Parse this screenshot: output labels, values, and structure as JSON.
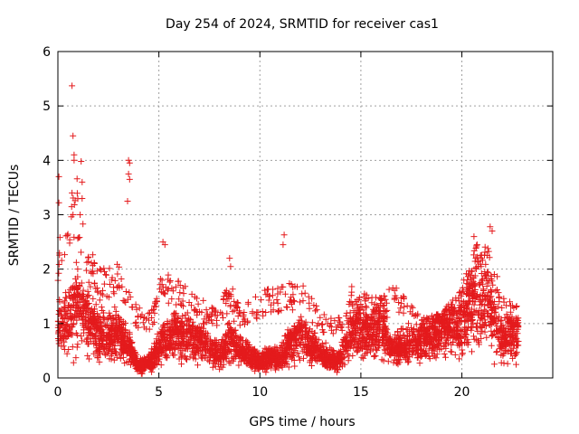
{
  "chart_data": {
    "type": "scatter",
    "title": "Day 254 of 2024, SRMTID for receiver cas1",
    "xlabel": "GPS time / hours",
    "ylabel": "SRMTID / TECUs",
    "xlim": [
      0,
      24.5
    ],
    "ylim": [
      0,
      6
    ],
    "xticks": [
      0,
      5,
      10,
      15,
      20
    ],
    "yticks": [
      0,
      1,
      2,
      3,
      4,
      5,
      6
    ],
    "grid": true,
    "marker": "plus",
    "series_color": "#e41a1c",
    "series": [
      {
        "name": "SRMTID",
        "generated_from_envelope": true,
        "points_per_hour": 190,
        "x_end": 22.8,
        "envelope": [
          {
            "x": 0.0,
            "median": 0.9,
            "max": 2.5
          },
          {
            "x": 0.5,
            "median": 1.0,
            "max": 3.2
          },
          {
            "x": 0.9,
            "median": 1.3,
            "max": 3.8
          },
          {
            "x": 1.4,
            "median": 1.2,
            "max": 2.6
          },
          {
            "x": 2.0,
            "median": 0.8,
            "max": 2.0
          },
          {
            "x": 3.0,
            "median": 0.8,
            "max": 2.1
          },
          {
            "x": 3.5,
            "median": 0.6,
            "max": 1.6
          },
          {
            "x": 4.0,
            "median": 0.2,
            "max": 1.3
          },
          {
            "x": 4.6,
            "median": 0.3,
            "max": 1.2
          },
          {
            "x": 5.2,
            "median": 0.7,
            "max": 2.0
          },
          {
            "x": 6.0,
            "median": 0.8,
            "max": 1.8
          },
          {
            "x": 7.0,
            "median": 0.7,
            "max": 1.5
          },
          {
            "x": 8.0,
            "median": 0.4,
            "max": 1.3
          },
          {
            "x": 8.5,
            "median": 0.7,
            "max": 1.8
          },
          {
            "x": 9.0,
            "median": 0.5,
            "max": 1.3
          },
          {
            "x": 10.0,
            "median": 0.3,
            "max": 1.6
          },
          {
            "x": 11.0,
            "median": 0.4,
            "max": 1.7
          },
          {
            "x": 12.0,
            "median": 0.8,
            "max": 1.8
          },
          {
            "x": 13.0,
            "median": 0.4,
            "max": 1.2
          },
          {
            "x": 14.0,
            "median": 0.3,
            "max": 1.1
          },
          {
            "x": 14.5,
            "median": 0.9,
            "max": 1.7
          },
          {
            "x": 15.5,
            "median": 0.8,
            "max": 1.5
          },
          {
            "x": 16.0,
            "median": 1.0,
            "max": 1.5
          },
          {
            "x": 16.5,
            "median": 0.5,
            "max": 1.8
          },
          {
            "x": 18.0,
            "median": 0.7,
            "max": 1.1
          },
          {
            "x": 19.0,
            "median": 0.9,
            "max": 1.2
          },
          {
            "x": 20.0,
            "median": 1.0,
            "max": 1.7
          },
          {
            "x": 20.7,
            "median": 1.5,
            "max": 2.5
          },
          {
            "x": 21.3,
            "median": 1.4,
            "max": 2.7
          },
          {
            "x": 22.0,
            "median": 0.7,
            "max": 1.5
          },
          {
            "x": 22.8,
            "median": 0.8,
            "max": 1.3
          }
        ],
        "outliers": [
          {
            "x": 0.7,
            "y": 5.37
          },
          {
            "x": 0.75,
            "y": 4.45
          },
          {
            "x": 0.8,
            "y": 4.1
          },
          {
            "x": 0.8,
            "y": 4.0
          },
          {
            "x": 1.15,
            "y": 3.98
          },
          {
            "x": 1.2,
            "y": 3.6
          },
          {
            "x": 0.05,
            "y": 3.7
          },
          {
            "x": 0.05,
            "y": 3.22
          },
          {
            "x": 0.7,
            "y": 3.4
          },
          {
            "x": 0.75,
            "y": 3.0
          },
          {
            "x": 1.2,
            "y": 3.3
          },
          {
            "x": 1.1,
            "y": 3.0
          },
          {
            "x": 3.5,
            "y": 4.0
          },
          {
            "x": 3.55,
            "y": 3.95
          },
          {
            "x": 3.5,
            "y": 3.75
          },
          {
            "x": 3.55,
            "y": 3.65
          },
          {
            "x": 3.45,
            "y": 3.25
          },
          {
            "x": 11.2,
            "y": 2.63
          },
          {
            "x": 11.15,
            "y": 2.45
          },
          {
            "x": 21.4,
            "y": 2.78
          },
          {
            "x": 21.5,
            "y": 2.7
          },
          {
            "x": 20.6,
            "y": 2.6
          },
          {
            "x": 5.2,
            "y": 2.5
          },
          {
            "x": 5.3,
            "y": 2.45
          },
          {
            "x": 8.5,
            "y": 2.2
          },
          {
            "x": 8.55,
            "y": 2.05
          }
        ]
      }
    ]
  }
}
